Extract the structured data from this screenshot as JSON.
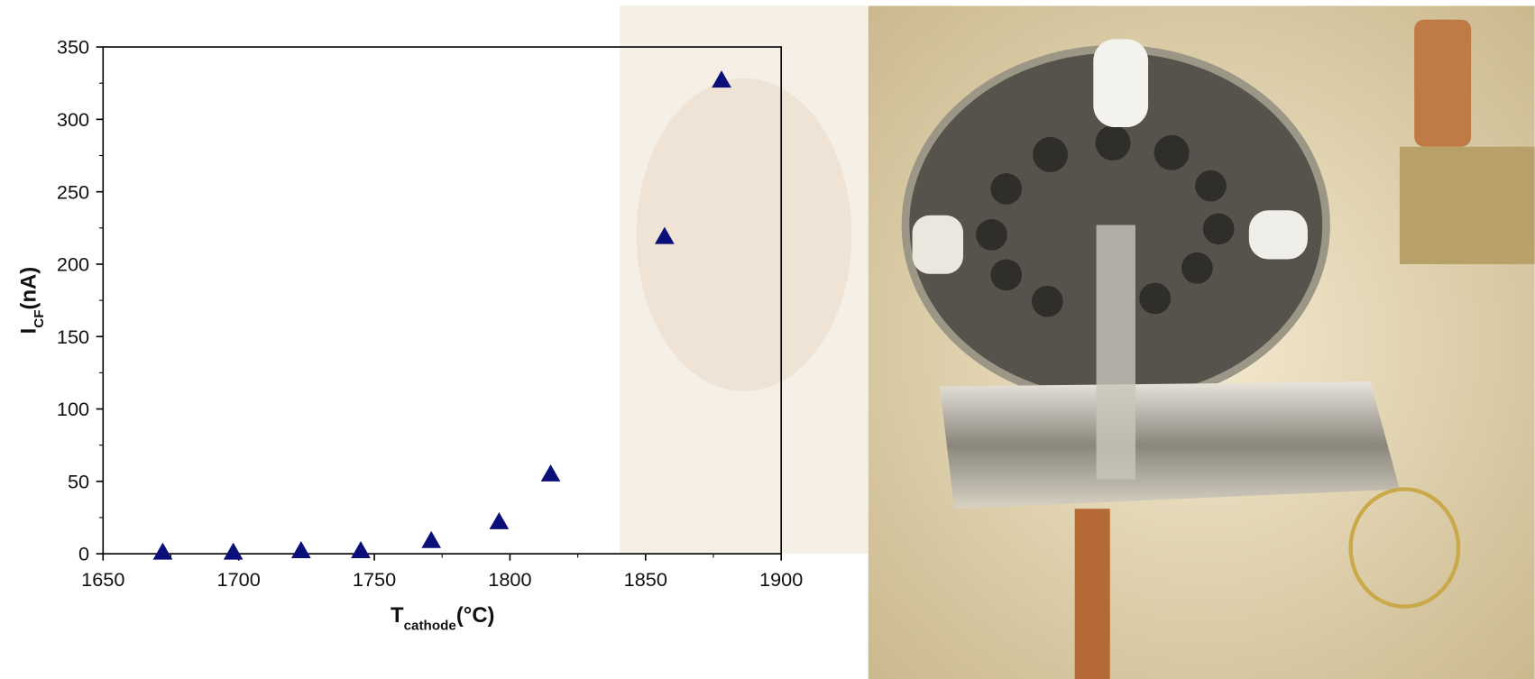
{
  "chart_data": {
    "type": "scatter",
    "x_label": {
      "main": "T",
      "sub": "cathode",
      "rest": "(°C)"
    },
    "y_label": {
      "main": "I",
      "sub": "CF",
      "rest": "(nA)"
    },
    "series": [
      {
        "color": "#0b0f7a",
        "marker": "triangle",
        "x": [
          1672,
          1698,
          1723,
          1745,
          1771,
          1796,
          1815,
          1857,
          1878
        ],
        "values": [
          1,
          1,
          2,
          2,
          9,
          22,
          55,
          219,
          327
        ]
      }
    ],
    "xlim": [
      1650,
      1900
    ],
    "xticks": [
      1650,
      1700,
      1750,
      1800,
      1850,
      1900
    ],
    "xminorticks": [
      1675,
      1725,
      1775,
      1825,
      1875
    ],
    "ylim": [
      0,
      350
    ],
    "yticks": [
      0,
      50,
      100,
      150,
      200,
      250,
      300,
      350
    ],
    "yminorticks": [
      25,
      75,
      125,
      175,
      225,
      275,
      325
    ]
  }
}
